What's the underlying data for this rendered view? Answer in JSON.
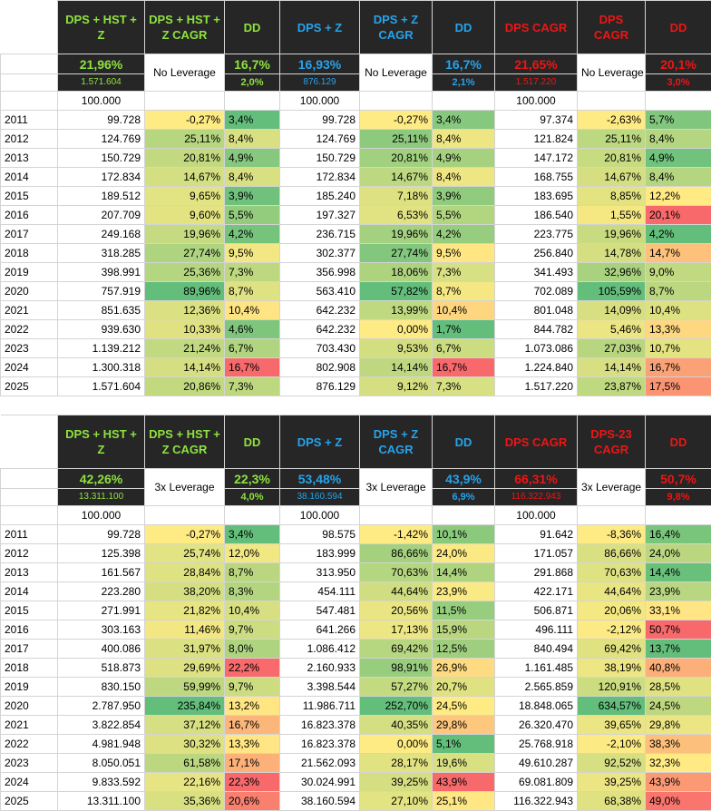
{
  "sections": [
    {
      "headers": [
        "DPS + HST + Z",
        "DPS + HST + Z CAGR",
        "DD",
        "DPS + Z",
        "DPS + Z CAGR",
        "DD",
        "DPS CAGR",
        "DPS CAGR",
        "DD"
      ],
      "top_pct": [
        "21,96%",
        "16,7%",
        "16,93%",
        "16,7%",
        "21,65%",
        "20,1%"
      ],
      "leverage_label": "No Leverage",
      "sub": [
        "1.571.604",
        "2,0%",
        "876.129",
        "2,1%",
        "1.517.220",
        "3,0%"
      ],
      "start": [
        "100.000",
        "100.000",
        "100.000"
      ],
      "rows": [
        [
          "2011",
          "99.728",
          "-0,27%",
          "3,4%",
          "99.728",
          "-0,27%",
          "3,4%",
          "97.374",
          "-2,63%",
          "5,7%"
        ],
        [
          "2012",
          "124.769",
          "25,11%",
          "8,4%",
          "124.769",
          "25,11%",
          "8,4%",
          "121.824",
          "25,11%",
          "8,4%"
        ],
        [
          "2013",
          "150.729",
          "20,81%",
          "4,9%",
          "150.729",
          "20,81%",
          "4,9%",
          "147.172",
          "20,81%",
          "4,9%"
        ],
        [
          "2014",
          "172.834",
          "14,67%",
          "8,4%",
          "172.834",
          "14,67%",
          "8,4%",
          "168.755",
          "14,67%",
          "8,4%"
        ],
        [
          "2015",
          "189.512",
          "9,65%",
          "3,9%",
          "185.240",
          "7,18%",
          "3,9%",
          "183.695",
          "8,85%",
          "12,2%"
        ],
        [
          "2016",
          "207.709",
          "9,60%",
          "5,5%",
          "197.327",
          "6,53%",
          "5,5%",
          "186.540",
          "1,55%",
          "20,1%"
        ],
        [
          "2017",
          "249.168",
          "19,96%",
          "4,2%",
          "236.715",
          "19,96%",
          "4,2%",
          "223.775",
          "19,96%",
          "4,2%"
        ],
        [
          "2018",
          "318.285",
          "27,74%",
          "9,5%",
          "302.377",
          "27,74%",
          "9,5%",
          "256.840",
          "14,78%",
          "14,7%"
        ],
        [
          "2019",
          "398.991",
          "25,36%",
          "7,3%",
          "356.998",
          "18,06%",
          "7,3%",
          "341.493",
          "32,96%",
          "9,0%"
        ],
        [
          "2020",
          "757.919",
          "89,96%",
          "8,7%",
          "563.410",
          "57,82%",
          "8,7%",
          "702.089",
          "105,59%",
          "8,7%"
        ],
        [
          "2021",
          "851.635",
          "12,36%",
          "10,4%",
          "642.232",
          "13,99%",
          "10,4%",
          "801.048",
          "14,09%",
          "10,4%"
        ],
        [
          "2022",
          "939.630",
          "10,33%",
          "4,6%",
          "642.232",
          "0,00%",
          "1,7%",
          "844.782",
          "5,46%",
          "13,3%"
        ],
        [
          "2023",
          "1.139.212",
          "21,24%",
          "6,7%",
          "703.430",
          "9,53%",
          "6,7%",
          "1.073.086",
          "27,03%",
          "10,7%"
        ],
        [
          "2024",
          "1.300.318",
          "14,14%",
          "16,7%",
          "802.908",
          "14,14%",
          "16,7%",
          "1.224.840",
          "14,14%",
          "16,7%"
        ],
        [
          "2025",
          "1.571.604",
          "20,86%",
          "7,3%",
          "876.129",
          "9,12%",
          "7,3%",
          "1.517.220",
          "23,87%",
          "17,5%"
        ]
      ]
    },
    {
      "headers": [
        "DPS + HST + Z",
        "DPS + HST + Z CAGR",
        "DD",
        "DPS + Z",
        "DPS + Z CAGR",
        "DD",
        "DPS CAGR",
        "DPS-23 CAGR",
        "DD"
      ],
      "top_pct": [
        "42,26%",
        "22,3%",
        "53,48%",
        "43,9%",
        "66,31%",
        "50,7%"
      ],
      "leverage_label": "3x Leverage",
      "sub": [
        "13.311.100",
        "4,0%",
        "38.160.594",
        "6,9%",
        "116.322.943",
        "9,8%"
      ],
      "start": [
        "100.000",
        "100.000",
        "100.000"
      ],
      "rows": [
        [
          "2011",
          "99.728",
          "-0,27%",
          "3,4%",
          "98.575",
          "-1,42%",
          "10,1%",
          "91.642",
          "-8,36%",
          "16,4%"
        ],
        [
          "2012",
          "125.398",
          "25,74%",
          "12,0%",
          "183.999",
          "86,66%",
          "24,0%",
          "171.057",
          "86,66%",
          "24,0%"
        ],
        [
          "2013",
          "161.567",
          "28,84%",
          "8,7%",
          "313.950",
          "70,63%",
          "14,4%",
          "291.868",
          "70,63%",
          "14,4%"
        ],
        [
          "2014",
          "223.280",
          "38,20%",
          "8,3%",
          "454.111",
          "44,64%",
          "23,9%",
          "422.171",
          "44,64%",
          "23,9%"
        ],
        [
          "2015",
          "271.991",
          "21,82%",
          "10,4%",
          "547.481",
          "20,56%",
          "11,5%",
          "506.871",
          "20,06%",
          "33,1%"
        ],
        [
          "2016",
          "303.163",
          "11,46%",
          "9,7%",
          "641.266",
          "17,13%",
          "15,9%",
          "496.111",
          "-2,12%",
          "50,7%"
        ],
        [
          "2017",
          "400.086",
          "31,97%",
          "8,0%",
          "1.086.412",
          "69,42%",
          "12,5%",
          "840.494",
          "69,42%",
          "13,7%"
        ],
        [
          "2018",
          "518.873",
          "29,69%",
          "22,2%",
          "2.160.933",
          "98,91%",
          "26,9%",
          "1.161.485",
          "38,19%",
          "40,8%"
        ],
        [
          "2019",
          "830.150",
          "59,99%",
          "9,7%",
          "3.398.544",
          "57,27%",
          "20,7%",
          "2.565.859",
          "120,91%",
          "28,5%"
        ],
        [
          "2020",
          "2.787.950",
          "235,84%",
          "13,2%",
          "11.986.711",
          "252,70%",
          "24,5%",
          "18.848.065",
          "634,57%",
          "24,5%"
        ],
        [
          "2021",
          "3.822.854",
          "37,12%",
          "16,7%",
          "16.823.378",
          "40,35%",
          "29,8%",
          "26.320.470",
          "39,65%",
          "29,8%"
        ],
        [
          "2022",
          "4.981.948",
          "30,32%",
          "13,3%",
          "16.823.378",
          "0,00%",
          "5,1%",
          "25.768.918",
          "-2,10%",
          "38,3%"
        ],
        [
          "2023",
          "8.050.051",
          "61,58%",
          "17,1%",
          "21.562.093",
          "28,17%",
          "19,6%",
          "49.610.287",
          "92,52%",
          "32,3%"
        ],
        [
          "2024",
          "9.833.592",
          "22,16%",
          "22,3%",
          "30.024.991",
          "39,25%",
          "43,9%",
          "69.081.809",
          "39,25%",
          "43,9%"
        ],
        [
          "2025",
          "13.311.100",
          "35,36%",
          "20,6%",
          "38.160.594",
          "27,10%",
          "25,1%",
          "116.322.943",
          "68,38%",
          "49,0%"
        ]
      ]
    }
  ],
  "colors": {
    "header_bg": "#262626",
    "green_text": "#8ee23e",
    "blue_text": "#25a3ec",
    "red_text": "#ee1515"
  }
}
